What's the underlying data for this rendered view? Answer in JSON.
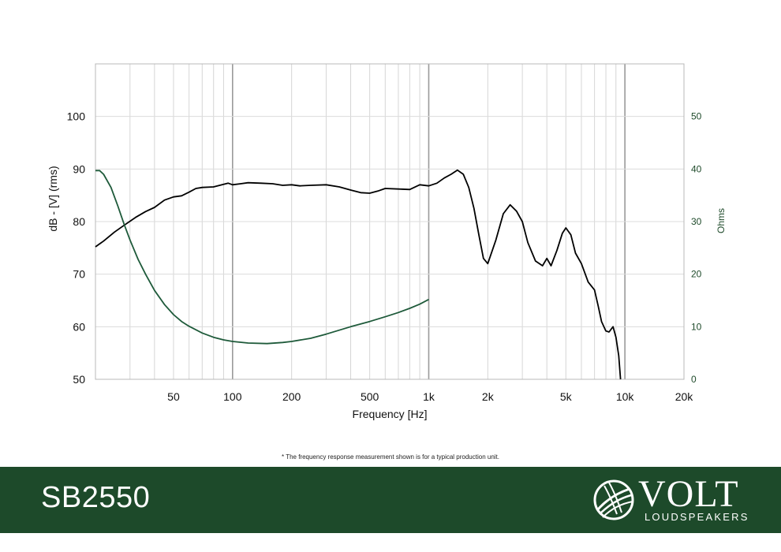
{
  "chart_data": {
    "type": "line",
    "xlabel": "Frequency [Hz]",
    "ylabel": "dB - [V]  (rms)",
    "y2label": "Ohms",
    "xscale": "log",
    "xlim": [
      20,
      20000
    ],
    "ylim": [
      50,
      110
    ],
    "y2lim": [
      0,
      60
    ],
    "x_ticks": [
      {
        "value": 50,
        "label": "50"
      },
      {
        "value": 100,
        "label": "100"
      },
      {
        "value": 200,
        "label": "200"
      },
      {
        "value": 500,
        "label": "500"
      },
      {
        "value": 1000,
        "label": "1k"
      },
      {
        "value": 2000,
        "label": "2k"
      },
      {
        "value": 5000,
        "label": "5k"
      },
      {
        "value": 10000,
        "label": "10k"
      },
      {
        "value": 20000,
        "label": "20k"
      }
    ],
    "y_ticks": [
      50,
      60,
      70,
      80,
      90,
      100
    ],
    "y2_ticks": [
      0,
      10,
      20,
      30,
      40,
      50
    ],
    "grid": true,
    "series": [
      {
        "axis": "left",
        "color": "#000000",
        "points": [
          [
            20,
            75.2
          ],
          [
            22,
            76.3
          ],
          [
            25,
            78
          ],
          [
            28,
            79.3
          ],
          [
            32,
            80.8
          ],
          [
            36,
            81.9
          ],
          [
            40,
            82.7
          ],
          [
            45,
            84.1
          ],
          [
            50,
            84.7
          ],
          [
            55,
            84.9
          ],
          [
            60,
            85.6
          ],
          [
            65,
            86.3
          ],
          [
            70,
            86.5
          ],
          [
            80,
            86.6
          ],
          [
            90,
            87.1
          ],
          [
            95,
            87.3
          ],
          [
            100,
            87.0
          ],
          [
            110,
            87.2
          ],
          [
            120,
            87.4
          ],
          [
            140,
            87.3
          ],
          [
            160,
            87.2
          ],
          [
            180,
            86.9
          ],
          [
            200,
            87.0
          ],
          [
            220,
            86.8
          ],
          [
            250,
            86.9
          ],
          [
            300,
            87.0
          ],
          [
            350,
            86.6
          ],
          [
            400,
            86.0
          ],
          [
            450,
            85.5
          ],
          [
            500,
            85.4
          ],
          [
            550,
            85.8
          ],
          [
            600,
            86.3
          ],
          [
            700,
            86.2
          ],
          [
            800,
            86.1
          ],
          [
            900,
            87.0
          ],
          [
            1000,
            86.8
          ],
          [
            1100,
            87.3
          ],
          [
            1200,
            88.3
          ],
          [
            1300,
            89.0
          ],
          [
            1400,
            89.8
          ],
          [
            1500,
            89.0
          ],
          [
            1600,
            86.5
          ],
          [
            1700,
            82.5
          ],
          [
            1800,
            77.5
          ],
          [
            1900,
            73.0
          ],
          [
            2000,
            72.0
          ],
          [
            2200,
            76.5
          ],
          [
            2400,
            81.5
          ],
          [
            2600,
            83.2
          ],
          [
            2800,
            82.0
          ],
          [
            3000,
            80.0
          ],
          [
            3200,
            76.0
          ],
          [
            3500,
            72.5
          ],
          [
            3800,
            71.6
          ],
          [
            4000,
            73.0
          ],
          [
            4200,
            71.6
          ],
          [
            4500,
            74.5
          ],
          [
            4800,
            77.8
          ],
          [
            5000,
            78.8
          ],
          [
            5300,
            77.5
          ],
          [
            5600,
            74.0
          ],
          [
            6000,
            72.0
          ],
          [
            6500,
            68.5
          ],
          [
            7000,
            67.0
          ],
          [
            7300,
            64.0
          ],
          [
            7600,
            61.0
          ],
          [
            8000,
            59.2
          ],
          [
            8300,
            59.0
          ],
          [
            8700,
            60.0
          ],
          [
            9000,
            58.0
          ],
          [
            9300,
            54.5
          ],
          [
            9500,
            50.0
          ]
        ]
      },
      {
        "axis": "right",
        "color": "#1e5a3a",
        "points": [
          [
            20,
            39.7
          ],
          [
            21,
            39.7
          ],
          [
            22,
            39.0
          ],
          [
            24,
            36.5
          ],
          [
            26,
            33.0
          ],
          [
            28,
            29.5
          ],
          [
            30,
            26.5
          ],
          [
            33,
            22.8
          ],
          [
            36,
            20.0
          ],
          [
            40,
            16.9
          ],
          [
            45,
            14.2
          ],
          [
            50,
            12.3
          ],
          [
            55,
            11.0
          ],
          [
            60,
            10.1
          ],
          [
            70,
            8.8
          ],
          [
            80,
            8.0
          ],
          [
            90,
            7.5
          ],
          [
            100,
            7.2
          ],
          [
            120,
            6.9
          ],
          [
            150,
            6.8
          ],
          [
            180,
            7.0
          ],
          [
            200,
            7.2
          ],
          [
            250,
            7.8
          ],
          [
            300,
            8.6
          ],
          [
            400,
            10.0
          ],
          [
            500,
            11.0
          ],
          [
            600,
            11.9
          ],
          [
            700,
            12.7
          ],
          [
            800,
            13.5
          ],
          [
            900,
            14.3
          ],
          [
            1000,
            15.2
          ]
        ]
      }
    ]
  },
  "footnote": "* The frequency response measurement shown is for a typical production unit.",
  "footer": {
    "model": "SB2550",
    "brand_name": "VOLT",
    "brand_sub": "LOUDSPEAKERS",
    "background": "#1d4a2a"
  }
}
